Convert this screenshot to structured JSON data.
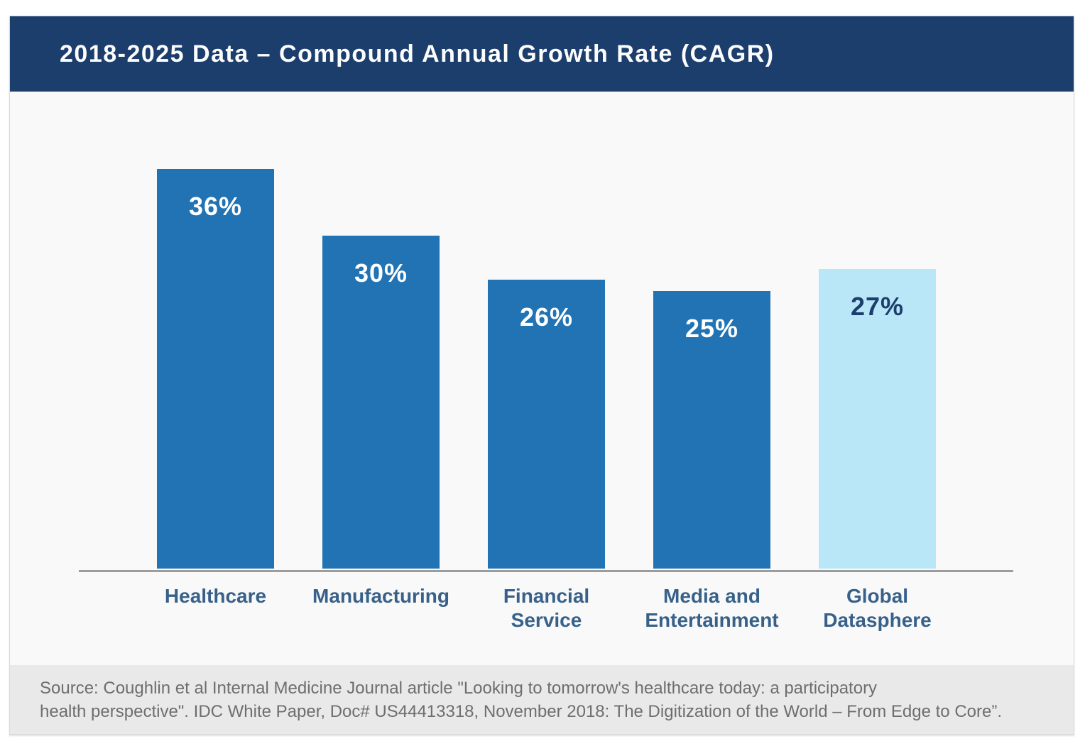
{
  "header": {
    "title": "2018-2025 Data – Compound Annual Growth Rate (CAGR)"
  },
  "chart_data": {
    "type": "bar",
    "title": "2018-2025 Data – Compound Annual Growth Rate (CAGR)",
    "categories": [
      "Healthcare",
      "Manufacturing",
      "Financial Service",
      "Media and Entertainment",
      "Global Datasphere"
    ],
    "category_lines": [
      [
        "Healthcare"
      ],
      [
        "Manufacturing"
      ],
      [
        "Financial",
        "Service"
      ],
      [
        "Media and",
        "Entertainment"
      ],
      [
        "Global",
        "Datasphere"
      ]
    ],
    "values": [
      36,
      30,
      26,
      25,
      27
    ],
    "value_labels": [
      "36%",
      "30%",
      "26%",
      "25%",
      "27%"
    ],
    "bar_colors": [
      "#2173b4",
      "#2173b4",
      "#2173b4",
      "#2173b4",
      "#b9e7f8"
    ],
    "value_label_colors": [
      "#ffffff",
      "#ffffff",
      "#ffffff",
      "#ffffff",
      "#1c3e6d"
    ],
    "xlabel": "",
    "ylabel": "",
    "unit": "%",
    "grid": false,
    "legend": false,
    "axis": "x-baseline-only",
    "highlight_category": "Global Datasphere"
  },
  "colors": {
    "header_bg": "#1c3e6d",
    "primary_bar": "#2173b4",
    "highlight_bar": "#b9e7f8",
    "category_label": "#38618a",
    "axis_line": "#9c9c9c",
    "footer_bg": "#e9e9e9",
    "footer_text": "#6e6e6e",
    "plot_bg": "#f9f9f9"
  },
  "footer": {
    "lines": [
      "Source: Coughlin et al Internal Medicine Journal article \"Looking to tomorrow's healthcare today: a participatory",
      "health perspective\". IDC White Paper, Doc# US44413318, November 2018: The Digitization of the World – From Edge to Core”."
    ]
  }
}
